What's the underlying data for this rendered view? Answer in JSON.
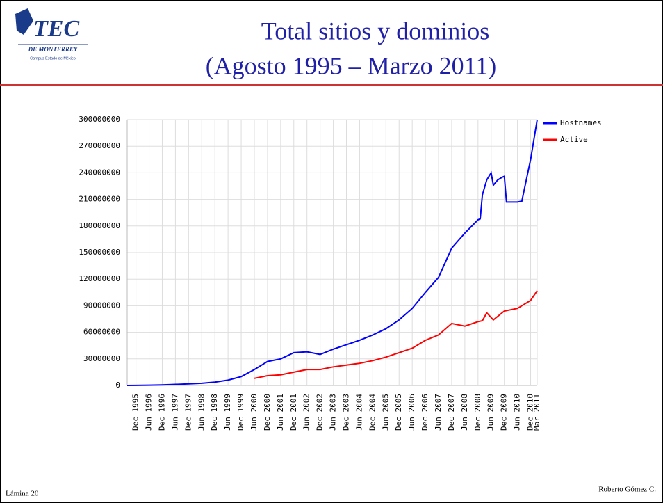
{
  "logo": {
    "name": "TEC",
    "line1": "DE MONTERREY",
    "line2": "Campus Estado de México"
  },
  "slide_title": [
    "Total sitios y dominios",
    "(Agosto 1995 – Marzo 2011)"
  ],
  "footer": {
    "left": "Lámina 20",
    "right": "Roberto Gómez C."
  },
  "chart_data": {
    "type": "line",
    "xlim": [
      "Aug 1995",
      "Mar 2011"
    ],
    "xticks": [
      "Dec 1995",
      "Jun 1996",
      "Dec 1996",
      "Jun 1997",
      "Dec 1997",
      "Jun 1998",
      "Dec 1998",
      "Jun 1999",
      "Dec 1999",
      "Jun 2000",
      "Dec 2000",
      "Jun 2001",
      "Dec 2001",
      "Jun 2002",
      "Dec 2002",
      "Jun 2003",
      "Dec 2003",
      "Jun 2004",
      "Dec 2004",
      "Jun 2005",
      "Dec 2005",
      "Jun 2006",
      "Dec 2006",
      "Jun 2007",
      "Dec 2007",
      "Jun 2008",
      "Dec 2008",
      "Jun 2009",
      "Dec 2009",
      "Jun 2010",
      "Dec 2010",
      "Mar 2011"
    ],
    "ylim": [
      0,
      300000000
    ],
    "yticks": [
      0,
      30000000,
      60000000,
      90000000,
      120000000,
      150000000,
      180000000,
      210000000,
      240000000,
      270000000,
      300000000
    ],
    "grid": true,
    "legend": "right",
    "series": [
      {
        "name": "Hostnames",
        "color": "#0000ff",
        "x": [
          "Aug 1995",
          "Dec 1995",
          "Jun 1996",
          "Dec 1996",
          "Jun 1997",
          "Dec 1997",
          "Jun 1998",
          "Dec 1998",
          "Jun 1999",
          "Dec 1999",
          "Jun 2000",
          "Dec 2000",
          "Jun 2001",
          "Dec 2001",
          "Jun 2002",
          "Dec 2002",
          "Jun 2003",
          "Dec 2003",
          "Jun 2004",
          "Dec 2004",
          "Jun 2005",
          "Dec 2005",
          "Jun 2006",
          "Dec 2006",
          "Jun 2007",
          "Dec 2007",
          "Jun 2008",
          "Dec 2008",
          "Jan 2009",
          "Feb 2009",
          "Apr 2009",
          "Jun 2009",
          "Jul 2009",
          "Sep 2009",
          "Nov 2009",
          "Dec 2009",
          "Jan 2010",
          "Jun 2010",
          "Aug 2010",
          "Sep 2010",
          "Dec 2010",
          "Mar 2011"
        ],
        "values": [
          0,
          100000,
          300000,
          600000,
          1200000,
          1700000,
          2400000,
          3700000,
          6000000,
          10000000,
          18000000,
          27000000,
          30000000,
          37000000,
          38000000,
          35000000,
          41000000,
          46000000,
          51000000,
          57000000,
          64000000,
          74000000,
          87000000,
          105000000,
          122000000,
          155000000,
          172000000,
          187000000,
          188000000,
          215000000,
          232000000,
          240000000,
          226000000,
          232000000,
          235000000,
          236000000,
          207000000,
          207000000,
          208000000,
          220000000,
          255000000,
          300000000
        ]
      },
      {
        "name": "Active",
        "color": "#ff0000",
        "x": [
          "Jun 2000",
          "Dec 2000",
          "Jun 2001",
          "Dec 2001",
          "Jun 2002",
          "Dec 2002",
          "Jun 2003",
          "Dec 2003",
          "Jun 2004",
          "Dec 2004",
          "Jun 2005",
          "Dec 2005",
          "Jun 2006",
          "Dec 2006",
          "Jun 2007",
          "Dec 2007",
          "Jun 2008",
          "Dec 2008",
          "Feb 2009",
          "Apr 2009",
          "Jul 2009",
          "Dec 2009",
          "Jun 2010",
          "Dec 2010",
          "Mar 2011"
        ],
        "values": [
          8000000,
          11000000,
          12000000,
          15000000,
          18000000,
          18000000,
          21000000,
          23000000,
          25000000,
          28000000,
          32000000,
          37000000,
          42000000,
          51000000,
          57000000,
          70000000,
          67000000,
          72000000,
          73000000,
          82000000,
          74000000,
          84000000,
          87000000,
          96000000,
          107000000
        ]
      }
    ]
  }
}
